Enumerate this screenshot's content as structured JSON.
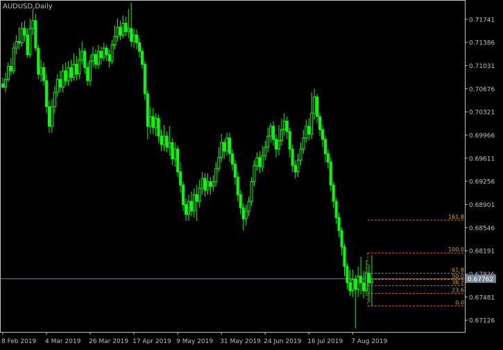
{
  "chart_title": "AUDUSD,Daily",
  "colors": {
    "background": "#000000",
    "frame": "#c0c0c0",
    "bull_candle": "#00ff00",
    "bear_candle": "#00ff00",
    "axis_text": "#c0c0c0",
    "bid_line": "#778899",
    "bid_label_bg": "#778899",
    "bid_label_text": "#ffffff",
    "fib_line": "#d2691e",
    "fib_text": "#daa520"
  },
  "current_price": {
    "label": "0.67762",
    "value": 0.67762
  },
  "chart_data": {
    "type": "candlestick",
    "symbol": "AUDUSD",
    "timeframe": "Daily",
    "y_axis": {
      "ticks": [
        "0.71741",
        "0.71386",
        "0.71031",
        "0.70676",
        "0.70321",
        "0.69966",
        "0.69611",
        "0.69256",
        "0.68901",
        "0.68546",
        "0.68191",
        "0.67836",
        "0.67481",
        "0.67126"
      ],
      "tick_values": [
        0.71741,
        0.71386,
        0.71031,
        0.70676,
        0.70321,
        0.69966,
        0.69611,
        0.69256,
        0.68901,
        0.68546,
        0.68191,
        0.67836,
        0.67481,
        0.67126
      ],
      "range": [
        0.66946,
        0.72026
      ]
    },
    "x_axis": {
      "ticks": [
        "8 Feb 2019",
        "4 Mar 2019",
        "26 Mar 2019",
        "17 Apr 2019",
        "9 May 2019",
        "31 May 2019",
        "24 Jun 2019",
        "16 Jul 2019",
        "7 Aug 2019"
      ],
      "tick_bar_index": [
        0,
        16,
        32,
        48,
        64,
        80,
        96,
        112,
        128
      ],
      "bar_count": 136
    },
    "candles": [
      [
        0.7075,
        0.707,
        0.7068,
        0.7085
      ],
      [
        0.707,
        0.7082,
        0.7062,
        0.7092
      ],
      [
        0.7082,
        0.7102,
        0.7078,
        0.7108
      ],
      [
        0.7102,
        0.7095,
        0.7088,
        0.7115
      ],
      [
        0.7095,
        0.713,
        0.709,
        0.7138
      ],
      [
        0.713,
        0.714,
        0.712,
        0.715
      ],
      [
        0.714,
        0.7138,
        0.7128,
        0.7162
      ],
      [
        0.7138,
        0.716,
        0.7132,
        0.717
      ],
      [
        0.716,
        0.715,
        0.714,
        0.7172
      ],
      [
        0.715,
        0.712,
        0.7115,
        0.716
      ],
      [
        0.712,
        0.716,
        0.7115,
        0.7175
      ],
      [
        0.716,
        0.7172,
        0.715,
        0.719
      ],
      [
        0.7172,
        0.713,
        0.7125,
        0.7182
      ],
      [
        0.713,
        0.709,
        0.7082,
        0.7135
      ],
      [
        0.709,
        0.71,
        0.7078,
        0.7112
      ],
      [
        0.71,
        0.708,
        0.7072,
        0.7108
      ],
      [
        0.708,
        0.704,
        0.703,
        0.709
      ],
      [
        0.704,
        0.701,
        0.7,
        0.705
      ],
      [
        0.701,
        0.704,
        0.7,
        0.7052
      ],
      [
        0.704,
        0.7062,
        0.703,
        0.7072
      ],
      [
        0.7062,
        0.7082,
        0.7055,
        0.709
      ],
      [
        0.7082,
        0.707,
        0.7062,
        0.7095
      ],
      [
        0.707,
        0.7095,
        0.7062,
        0.7105
      ],
      [
        0.7095,
        0.708,
        0.7072,
        0.7108
      ],
      [
        0.708,
        0.71,
        0.7072,
        0.711
      ],
      [
        0.71,
        0.7085,
        0.7078,
        0.7112
      ],
      [
        0.7085,
        0.7105,
        0.708,
        0.7122
      ],
      [
        0.7105,
        0.709,
        0.708,
        0.7118
      ],
      [
        0.709,
        0.7112,
        0.7082,
        0.713
      ],
      [
        0.7112,
        0.7125,
        0.7105,
        0.714
      ],
      [
        0.7125,
        0.71,
        0.709,
        0.713
      ],
      [
        0.71,
        0.708,
        0.7072,
        0.7108
      ],
      [
        0.708,
        0.711,
        0.7072,
        0.712
      ],
      [
        0.711,
        0.712,
        0.71,
        0.7132
      ],
      [
        0.712,
        0.7105,
        0.7098,
        0.7128
      ],
      [
        0.7105,
        0.7125,
        0.7098,
        0.7135
      ],
      [
        0.7125,
        0.7115,
        0.7105,
        0.7132
      ],
      [
        0.7115,
        0.713,
        0.711,
        0.7138
      ],
      [
        0.713,
        0.712,
        0.711,
        0.7135
      ],
      [
        0.712,
        0.711,
        0.71,
        0.7128
      ],
      [
        0.711,
        0.7135,
        0.7105,
        0.7142
      ],
      [
        0.7135,
        0.7148,
        0.7128,
        0.7165
      ],
      [
        0.7148,
        0.7162,
        0.714,
        0.7175
      ],
      [
        0.7162,
        0.715,
        0.7142,
        0.7172
      ],
      [
        0.715,
        0.7168,
        0.7145,
        0.718
      ],
      [
        0.7168,
        0.7155,
        0.7148,
        0.7178
      ],
      [
        0.7155,
        0.716,
        0.7145,
        0.719
      ],
      [
        0.716,
        0.714,
        0.7132,
        0.72
      ],
      [
        0.714,
        0.715,
        0.713,
        0.716
      ],
      [
        0.715,
        0.7138,
        0.7128,
        0.7158
      ],
      [
        0.7138,
        0.7125,
        0.7115,
        0.7145
      ],
      [
        0.7125,
        0.7105,
        0.7098,
        0.713
      ],
      [
        0.7105,
        0.706,
        0.705,
        0.711
      ],
      [
        0.706,
        0.701,
        0.699,
        0.7065
      ],
      [
        0.701,
        0.7025,
        0.6998,
        0.704
      ],
      [
        0.7025,
        0.7008,
        0.6998,
        0.7038
      ],
      [
        0.7008,
        0.7022,
        0.6995,
        0.703
      ],
      [
        0.7022,
        0.6995,
        0.6985,
        0.7028
      ],
      [
        0.6995,
        0.6982,
        0.6972,
        0.7005
      ],
      [
        0.6982,
        0.6995,
        0.6972,
        0.7012
      ],
      [
        0.6995,
        0.6978,
        0.697,
        0.7002
      ],
      [
        0.6978,
        0.6985,
        0.6965,
        0.701
      ],
      [
        0.6985,
        0.696,
        0.695,
        0.6992
      ],
      [
        0.696,
        0.6975,
        0.6948,
        0.6985
      ],
      [
        0.6975,
        0.694,
        0.6932,
        0.698
      ],
      [
        0.694,
        0.692,
        0.6908,
        0.6955
      ],
      [
        0.692,
        0.689,
        0.688,
        0.6925
      ],
      [
        0.689,
        0.6875,
        0.6865,
        0.69
      ],
      [
        0.6875,
        0.6895,
        0.6865,
        0.6905
      ],
      [
        0.6895,
        0.688,
        0.6872,
        0.691
      ],
      [
        0.688,
        0.6905,
        0.687,
        0.6915
      ],
      [
        0.6905,
        0.6895,
        0.6865,
        0.692
      ],
      [
        0.6895,
        0.6915,
        0.6885,
        0.6928
      ],
      [
        0.6915,
        0.693,
        0.6905,
        0.694
      ],
      [
        0.693,
        0.6912,
        0.6902,
        0.6938
      ],
      [
        0.6912,
        0.6925,
        0.6905,
        0.6938
      ],
      [
        0.6925,
        0.6918,
        0.6905,
        0.6932
      ],
      [
        0.6918,
        0.6925,
        0.691,
        0.6935
      ],
      [
        0.6925,
        0.6945,
        0.6918,
        0.6955
      ],
      [
        0.6945,
        0.6962,
        0.694,
        0.6978
      ],
      [
        0.6962,
        0.6985,
        0.6955,
        0.6998
      ],
      [
        0.6985,
        0.6972,
        0.696,
        0.699
      ],
      [
        0.6972,
        0.6992,
        0.6965,
        0.7
      ],
      [
        0.6992,
        0.6968,
        0.6955,
        0.7
      ],
      [
        0.6968,
        0.6952,
        0.6942,
        0.6975
      ],
      [
        0.6952,
        0.6932,
        0.692,
        0.6958
      ],
      [
        0.6932,
        0.6905,
        0.6895,
        0.694
      ],
      [
        0.6905,
        0.6885,
        0.6875,
        0.6912
      ],
      [
        0.6885,
        0.6868,
        0.685,
        0.6892
      ],
      [
        0.6868,
        0.688,
        0.6858,
        0.689
      ],
      [
        0.688,
        0.6895,
        0.6872,
        0.6902
      ],
      [
        0.6895,
        0.6925,
        0.6888,
        0.6932
      ],
      [
        0.6925,
        0.695,
        0.6918,
        0.6958
      ],
      [
        0.695,
        0.6962,
        0.6942,
        0.697
      ],
      [
        0.6962,
        0.6948,
        0.6938,
        0.6972
      ],
      [
        0.6948,
        0.6965,
        0.694,
        0.698
      ],
      [
        0.6965,
        0.6978,
        0.6958,
        0.6988
      ],
      [
        0.6978,
        0.6995,
        0.697,
        0.7008
      ],
      [
        0.6995,
        0.701,
        0.6985,
        0.7015
      ],
      [
        0.701,
        0.699,
        0.698,
        0.7018
      ],
      [
        0.699,
        0.6975,
        0.6962,
        0.6998
      ],
      [
        0.6975,
        0.6988,
        0.6965,
        0.7012
      ],
      [
        0.6988,
        0.7005,
        0.698,
        0.7022
      ],
      [
        0.7005,
        0.7018,
        0.6995,
        0.703
      ],
      [
        0.7018,
        0.7002,
        0.699,
        0.7025
      ],
      [
        0.7002,
        0.6975,
        0.6962,
        0.7008
      ],
      [
        0.6975,
        0.695,
        0.694,
        0.6982
      ],
      [
        0.695,
        0.694,
        0.693,
        0.6958
      ],
      [
        0.694,
        0.6958,
        0.6932,
        0.6968
      ],
      [
        0.6958,
        0.6975,
        0.695,
        0.6985
      ],
      [
        0.6975,
        0.6992,
        0.6968,
        0.7005
      ],
      [
        0.6992,
        0.701,
        0.6985,
        0.702
      ],
      [
        0.701,
        0.6998,
        0.6988,
        0.7022
      ],
      [
        0.6998,
        0.703,
        0.699,
        0.7062
      ],
      [
        0.703,
        0.7055,
        0.702,
        0.7068
      ],
      [
        0.7055,
        0.7025,
        0.7015,
        0.706
      ],
      [
        0.7025,
        0.7005,
        0.6995,
        0.703
      ],
      [
        0.7005,
        0.699,
        0.6978,
        0.7012
      ],
      [
        0.699,
        0.6968,
        0.6955,
        0.6995
      ],
      [
        0.6968,
        0.6955,
        0.6945,
        0.6975
      ],
      [
        0.6955,
        0.692,
        0.691,
        0.6962
      ],
      [
        0.692,
        0.6895,
        0.6885,
        0.6925
      ],
      [
        0.6895,
        0.687,
        0.686,
        0.69
      ],
      [
        0.687,
        0.685,
        0.684,
        0.6878
      ],
      [
        0.685,
        0.6825,
        0.6812,
        0.6855
      ],
      [
        0.6825,
        0.6795,
        0.678,
        0.683
      ],
      [
        0.6795,
        0.677,
        0.676,
        0.68
      ],
      [
        0.677,
        0.6758,
        0.675,
        0.679
      ],
      [
        0.6758,
        0.6775,
        0.6748,
        0.679
      ],
      [
        0.6775,
        0.676,
        0.67,
        0.6782
      ],
      [
        0.676,
        0.678,
        0.6748,
        0.6795
      ],
      [
        0.678,
        0.677,
        0.6752,
        0.681
      ],
      [
        0.677,
        0.6758,
        0.6746,
        0.6788
      ],
      [
        0.6758,
        0.6785,
        0.675,
        0.6805
      ],
      [
        0.6785,
        0.677,
        0.674,
        0.6798
      ],
      [
        0.677,
        0.6776,
        0.6735,
        0.6812
      ]
    ],
    "fibonacci": {
      "high": 0.68158,
      "low": 0.67344,
      "levels": [
        {
          "label": "161.8",
          "ratio": 1.618
        },
        {
          "label": "100.0",
          "ratio": 1.0
        },
        {
          "label": "61.8",
          "ratio": 0.618
        },
        {
          "label": "50.0",
          "ratio": 0.5
        },
        {
          "label": "38.2",
          "ratio": 0.382
        },
        {
          "label": "23.6",
          "ratio": 0.236
        },
        {
          "label": "0.0",
          "ratio": 0.0
        }
      ]
    }
  }
}
